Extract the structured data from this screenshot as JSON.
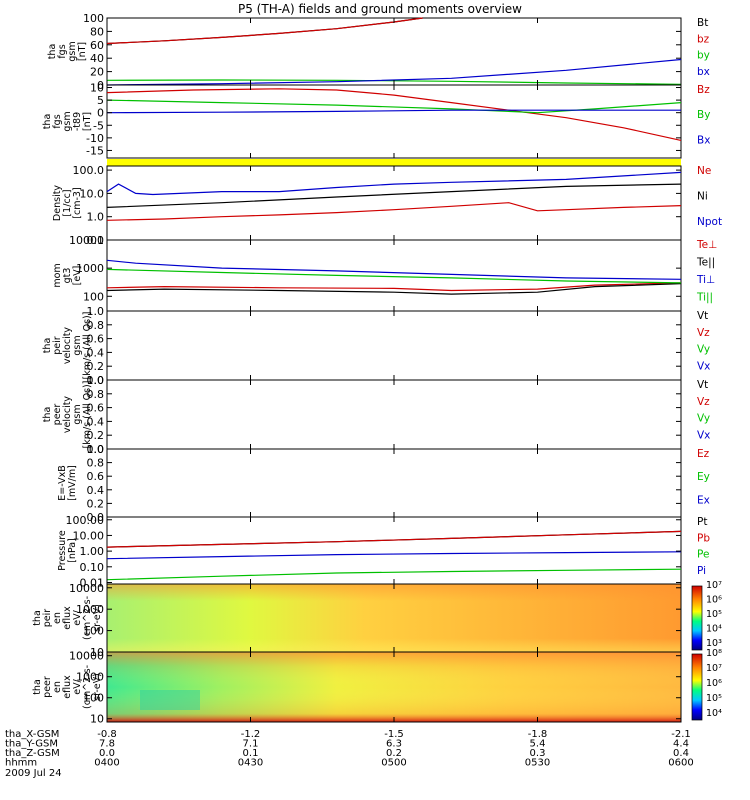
{
  "title": "P5 (TH-A) fields and ground moments overview",
  "date": "2009 Jul 24",
  "colors": {
    "black": "#000000",
    "red": "#d00000",
    "green": "#00c000",
    "blue": "#0000cc",
    "yellow": "#ffff00"
  },
  "chart_data": [
    {
      "type": "line",
      "ylabel": [
        "tha",
        "fgs",
        "gsm",
        "[nT]"
      ],
      "yscale": "linear",
      "ylim": [
        0,
        100
      ],
      "ticks": [
        "0",
        "20",
        "40",
        "60",
        "80",
        "100"
      ],
      "legend": [
        {
          "text": "Bt",
          "color": "black"
        },
        {
          "text": "bz",
          "color": "red"
        },
        {
          "text": "by",
          "color": "green"
        },
        {
          "text": "bx",
          "color": "blue"
        }
      ],
      "series": [
        {
          "color": "black",
          "x": [
            0,
            0.1,
            0.2,
            0.3,
            0.4,
            0.5,
            0.55
          ],
          "y": [
            62,
            66,
            71,
            77,
            84,
            94,
            101
          ]
        },
        {
          "color": "red",
          "x": [
            0,
            0.1,
            0.2,
            0.3,
            0.4,
            0.5,
            0.55
          ],
          "y": [
            62,
            66,
            71,
            77,
            84,
            94,
            101
          ]
        },
        {
          "color": "green",
          "x": [
            0,
            0.2,
            0.4,
            0.6,
            0.8,
            1.0
          ],
          "y": [
            7,
            7.5,
            7,
            5.5,
            3,
            1
          ]
        },
        {
          "color": "blue",
          "x": [
            0,
            0.2,
            0.4,
            0.6,
            0.8,
            1.0
          ],
          "y": [
            0,
            2,
            5,
            10,
            22,
            38
          ]
        }
      ]
    },
    {
      "type": "line",
      "ylabel": [
        "tha",
        "fgs",
        "gsm",
        "-t89",
        "[nT]"
      ],
      "yscale": "linear",
      "ylim": [
        -18,
        11
      ],
      "ticks": [
        "-15",
        "-10",
        "-5",
        "0",
        "5",
        "10"
      ],
      "legend": [
        {
          "text": "Bz",
          "color": "red"
        },
        {
          "text": "By",
          "color": "green"
        },
        {
          "text": "Bx",
          "color": "blue"
        }
      ],
      "series": [
        {
          "color": "red",
          "x": [
            0,
            0.15,
            0.3,
            0.4,
            0.5,
            0.6,
            0.7,
            0.8,
            0.9,
            1.0
          ],
          "y": [
            8,
            9,
            9.5,
            9,
            7,
            4,
            1,
            -2,
            -6,
            -11
          ]
        },
        {
          "color": "green",
          "x": [
            0,
            0.2,
            0.4,
            0.6,
            0.75,
            0.85,
            1.0
          ],
          "y": [
            5,
            4,
            3,
            1.5,
            0,
            1.5,
            4
          ]
        },
        {
          "color": "blue",
          "x": [
            0,
            0.2,
            0.4,
            0.6,
            0.8,
            1.0
          ],
          "y": [
            0,
            0.2,
            0.5,
            1,
            1,
            1
          ]
        }
      ]
    },
    {
      "type": "line",
      "ylabel": [
        "Density",
        "[1/cc]",
        "[cm-3]"
      ],
      "yscale": "log",
      "ylim": [
        0.1,
        150
      ],
      "ticks": [
        "0.1",
        "1.0",
        "10.0",
        "100.0"
      ],
      "legend": [
        {
          "text": "Ne",
          "color": "red"
        },
        {
          "text": "Ni",
          "color": "black"
        },
        {
          "text": "Npot",
          "color": "blue"
        }
      ],
      "series": [
        {
          "color": "red",
          "x": [
            0,
            0.1,
            0.2,
            0.3,
            0.4,
            0.5,
            0.6,
            0.7,
            0.75,
            0.8,
            0.9,
            1.0
          ],
          "y": [
            0.7,
            0.8,
            1.0,
            1.2,
            1.5,
            2.0,
            2.8,
            4.0,
            1.8,
            2.0,
            2.5,
            3.0
          ]
        },
        {
          "color": "black",
          "x": [
            0,
            0.2,
            0.4,
            0.6,
            0.8,
            1.0
          ],
          "y": [
            2.5,
            4,
            7,
            12,
            20,
            25
          ]
        },
        {
          "color": "blue",
          "x": [
            0,
            0.02,
            0.05,
            0.08,
            0.2,
            0.3,
            0.4,
            0.5,
            0.6,
            0.8,
            1.0
          ],
          "y": [
            12,
            25,
            10,
            9,
            12,
            12,
            18,
            25,
            30,
            40,
            80
          ]
        }
      ]
    },
    {
      "type": "line",
      "ylabel": [
        "mom",
        "gt3",
        "[eV]"
      ],
      "yscale": "log",
      "ylim": [
        30,
        10000
      ],
      "ticks": [
        "100",
        "1000",
        "10000"
      ],
      "legend": [
        {
          "text": "Te⊥",
          "color": "red"
        },
        {
          "text": "Te||",
          "color": "black"
        },
        {
          "text": "Ti⊥",
          "color": "blue"
        },
        {
          "text": "Ti||",
          "color": "green"
        }
      ],
      "series": [
        {
          "color": "red",
          "x": [
            0,
            0.1,
            0.3,
            0.5,
            0.6,
            0.75,
            0.85,
            1.0
          ],
          "y": [
            200,
            220,
            200,
            190,
            160,
            180,
            250,
            300
          ]
        },
        {
          "color": "black",
          "x": [
            0,
            0.1,
            0.3,
            0.5,
            0.6,
            0.75,
            0.85,
            1.0
          ],
          "y": [
            160,
            180,
            160,
            140,
            120,
            140,
            220,
            280
          ]
        },
        {
          "color": "blue",
          "x": [
            0,
            0.05,
            0.2,
            0.4,
            0.6,
            0.8,
            1.0
          ],
          "y": [
            1900,
            1500,
            1000,
            800,
            600,
            450,
            400
          ]
        },
        {
          "color": "green",
          "x": [
            0,
            0.2,
            0.4,
            0.6,
            0.8,
            1.0
          ],
          "y": [
            900,
            700,
            550,
            450,
            350,
            300
          ]
        }
      ]
    },
    {
      "type": "line",
      "ylabel": [
        "tha",
        "peir",
        "velocity",
        "gsm",
        "[km/s (All Qs)]"
      ],
      "yscale": "linear",
      "ylim": [
        0,
        1
      ],
      "ticks": [
        "0.0",
        "0.2",
        "0.4",
        "0.6",
        "0.8",
        "1.0"
      ],
      "legend": [
        {
          "text": "Vt",
          "color": "black"
        },
        {
          "text": "Vz",
          "color": "red"
        },
        {
          "text": "Vy",
          "color": "green"
        },
        {
          "text": "Vx",
          "color": "blue"
        }
      ],
      "series": []
    },
    {
      "type": "line",
      "ylabel": [
        "tha",
        "peer",
        "velocity",
        "gsm",
        "[km/s (All Qs)]"
      ],
      "yscale": "linear",
      "ylim": [
        0,
        1
      ],
      "ticks": [
        "0.0",
        "0.2",
        "0.4",
        "0.6",
        "0.8",
        "1.0"
      ],
      "legend": [
        {
          "text": "Vt",
          "color": "black"
        },
        {
          "text": "Vz",
          "color": "red"
        },
        {
          "text": "Vy",
          "color": "green"
        },
        {
          "text": "Vx",
          "color": "blue"
        }
      ],
      "series": []
    },
    {
      "type": "line",
      "ylabel": [
        "E=-VxB",
        "[mV/m]"
      ],
      "yscale": "linear",
      "ylim": [
        0,
        1
      ],
      "ticks": [
        "0.0",
        "0.2",
        "0.4",
        "0.6",
        "0.8",
        "1.0"
      ],
      "legend": [
        {
          "text": "Ez",
          "color": "red"
        },
        {
          "text": "Ey",
          "color": "green"
        },
        {
          "text": "Ex",
          "color": "blue"
        }
      ],
      "series": []
    },
    {
      "type": "line",
      "ylabel": [
        "Pressure",
        "[nPa]"
      ],
      "yscale": "log",
      "ylim": [
        0.008,
        150
      ],
      "ticks": [
        "0.01",
        "0.10",
        "1.00",
        "10.00",
        "100.00"
      ],
      "legend": [
        {
          "text": "Pt",
          "color": "black"
        },
        {
          "text": "Pb",
          "color": "red"
        },
        {
          "text": "Pe",
          "color": "green"
        },
        {
          "text": "Pi",
          "color": "blue"
        }
      ],
      "series": [
        {
          "color": "black",
          "x": [
            0,
            0.2,
            0.4,
            0.6,
            0.8,
            1.0
          ],
          "y": [
            1.8,
            2.7,
            4,
            6.5,
            11,
            18
          ]
        },
        {
          "color": "red",
          "x": [
            0,
            0.2,
            0.4,
            0.6,
            0.8,
            1.0
          ],
          "y": [
            1.8,
            2.7,
            4,
            6.5,
            11,
            18
          ]
        },
        {
          "color": "blue",
          "x": [
            0,
            0.2,
            0.4,
            0.6,
            0.8,
            1.0
          ],
          "y": [
            0.33,
            0.45,
            0.6,
            0.7,
            0.8,
            0.9
          ]
        },
        {
          "color": "green",
          "x": [
            0,
            0.2,
            0.4,
            0.6,
            0.8,
            1.0
          ],
          "y": [
            0.015,
            0.025,
            0.04,
            0.05,
            0.06,
            0.07
          ]
        }
      ]
    },
    {
      "type": "heatmap",
      "ylabel": [
        "tha",
        "peir",
        "en",
        "eflux",
        "eV/",
        "(cm^2-s-",
        "sr-eV)"
      ],
      "yscale": "log",
      "ylim": [
        10,
        15000
      ],
      "ticks": [
        "10",
        "100",
        "1000",
        "10000"
      ],
      "colorbar_ticks": [
        "10³",
        "10⁴",
        "10⁵",
        "10⁶",
        "10⁷"
      ]
    },
    {
      "type": "heatmap",
      "ylabel": [
        "tha",
        "peer",
        "en",
        "eflux",
        "eV/",
        "(cm^2-s-",
        "sr-eV)"
      ],
      "yscale": "log",
      "ylim": [
        7,
        15000
      ],
      "ticks": [
        "10",
        "100",
        "1000",
        "10000"
      ],
      "colorbar_ticks": [
        "10⁴",
        "10⁵",
        "10⁶",
        "10⁷",
        "10⁸"
      ]
    }
  ],
  "xaxis": {
    "row_labels": [
      "tha_X-GSM",
      "tha_Y-GSM",
      "tha_Z-GSM",
      "hhmm"
    ],
    "ticks": [
      {
        "values": [
          "-0.8",
          "7.8",
          "0.0",
          "0400"
        ]
      },
      {
        "values": [
          "-1.2",
          "7.1",
          "0.1",
          "0430"
        ]
      },
      {
        "values": [
          "-1.5",
          "6.3",
          "0.2",
          "0500"
        ]
      },
      {
        "values": [
          "-1.8",
          "5.4",
          "0.3",
          "0530"
        ]
      },
      {
        "values": [
          "-2.1",
          "4.4",
          "0.4",
          "0600"
        ]
      }
    ]
  }
}
